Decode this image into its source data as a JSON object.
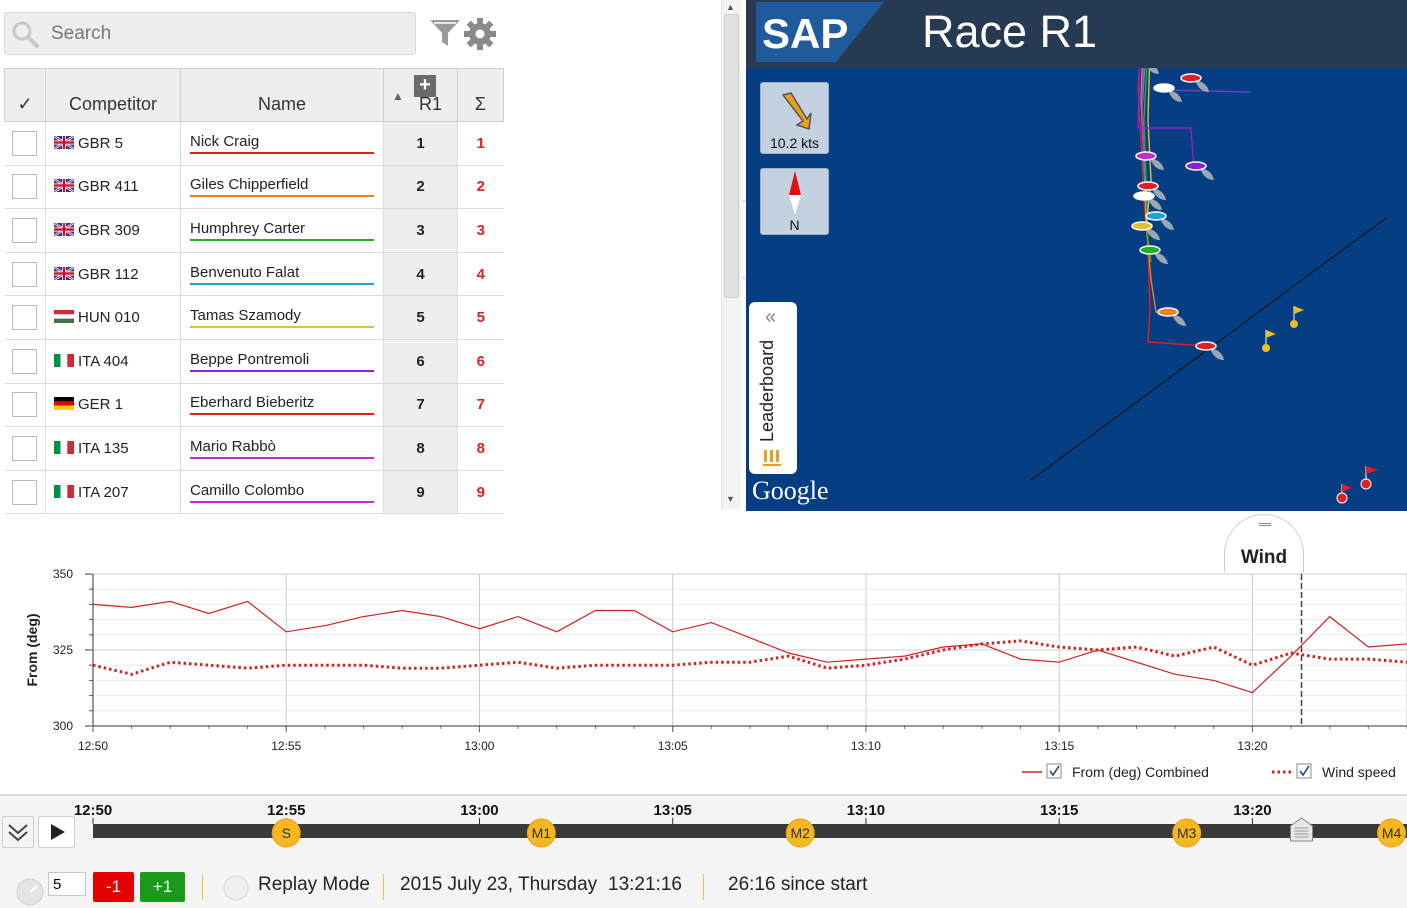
{
  "search": {
    "placeholder": "Search"
  },
  "leaderboard": {
    "columns": {
      "check": "✓",
      "competitor": "Competitor",
      "name": "Name",
      "race": "R1",
      "sum": "Σ"
    },
    "rows": [
      {
        "competitor": "GBR 5",
        "flag": "gb",
        "name": "Nick Craig",
        "r1": "1",
        "sum": "1",
        "color": "#e02020"
      },
      {
        "competitor": "GBR 411",
        "flag": "gb",
        "name": "Giles Chipperfield",
        "r1": "2",
        "sum": "2",
        "color": "#f08020"
      },
      {
        "competitor": "GBR 309",
        "flag": "gb",
        "name": "Humphrey Carter",
        "r1": "3",
        "sum": "3",
        "color": "#20b020"
      },
      {
        "competitor": "GBR 112",
        "flag": "gb",
        "name": "Benvenuto Falat",
        "r1": "4",
        "sum": "4",
        "color": "#20a0d0"
      },
      {
        "competitor": "HUN 010",
        "flag": "hu",
        "name": "Tamas Szamody",
        "r1": "5",
        "sum": "5",
        "color": "#e0c030"
      },
      {
        "competitor": "ITA 404",
        "flag": "it",
        "name": "Beppe Pontremoli",
        "r1": "6",
        "sum": "6",
        "color": "#9020d0"
      },
      {
        "competitor": "GER 1",
        "flag": "de",
        "name": "Eberhard Bieberitz",
        "r1": "7",
        "sum": "7",
        "color": "#e02020"
      },
      {
        "competitor": "ITA 135",
        "flag": "it",
        "name": "Mario Rabbò",
        "r1": "8",
        "sum": "8",
        "color": "#c030d0"
      },
      {
        "competitor": "ITA 207",
        "flag": "it",
        "name": "Camillo Colombo",
        "r1": "9",
        "sum": "9",
        "color": "#c030d0"
      }
    ]
  },
  "map": {
    "logo": "SAP",
    "title": "Race R1",
    "wind_label": "10.2 kts",
    "north_label": "N",
    "leaderboard_tab": "Leaderboard",
    "google": "Google",
    "water_color": "#063e84"
  },
  "wind_panel": {
    "tab_label": "Wind"
  },
  "chart_data": {
    "type": "line",
    "ylabel": "From (deg)",
    "xlabel": "",
    "ylim": [
      300,
      350
    ],
    "yticks": [
      "300",
      "325",
      "350"
    ],
    "x_ticks": [
      "12:50",
      "12:55",
      "13:00",
      "13:05",
      "13:10",
      "13:15",
      "13:20"
    ],
    "x_range_minutes": [
      "12:50",
      "13:24"
    ],
    "current_time_marker": "13:21",
    "grid": true,
    "legend_position": "bottom-right",
    "series": [
      {
        "name": "From (deg) Combined",
        "style": "solid",
        "color": "#d42020",
        "x": [
          "12:50",
          "12:51",
          "12:52",
          "12:53",
          "12:54",
          "12:55",
          "12:56",
          "12:57",
          "12:58",
          "12:59",
          "13:00",
          "13:01",
          "13:02",
          "13:03",
          "13:04",
          "13:05",
          "13:06",
          "13:07",
          "13:08",
          "13:09",
          "13:10",
          "13:11",
          "13:12",
          "13:13",
          "13:14",
          "13:15",
          "13:16",
          "13:17",
          "13:18",
          "13:19",
          "13:20",
          "13:21",
          "13:22",
          "13:23",
          "13:24"
        ],
        "values": [
          340,
          339,
          341,
          337,
          341,
          331,
          333,
          336,
          338,
          336,
          332,
          336,
          331,
          338,
          338,
          331,
          334,
          329,
          324,
          321,
          322,
          323,
          326,
          327,
          322,
          321,
          325,
          321,
          317,
          315,
          311,
          323,
          336,
          326,
          327
        ]
      },
      {
        "name": "Wind speed",
        "style": "dotted",
        "color": "#d42020",
        "x": [
          "12:50",
          "12:51",
          "12:52",
          "12:53",
          "12:54",
          "12:55",
          "12:56",
          "12:57",
          "12:58",
          "12:59",
          "13:00",
          "13:01",
          "13:02",
          "13:03",
          "13:04",
          "13:05",
          "13:06",
          "13:07",
          "13:08",
          "13:09",
          "13:10",
          "13:11",
          "13:12",
          "13:13",
          "13:14",
          "13:15",
          "13:16",
          "13:17",
          "13:18",
          "13:19",
          "13:20",
          "13:21",
          "13:22",
          "13:23",
          "13:24"
        ],
        "values": [
          320,
          317,
          321,
          320,
          319,
          320,
          320,
          320,
          319,
          319,
          320,
          321,
          319,
          320,
          320,
          320,
          321,
          321,
          323,
          319,
          320,
          322,
          325,
          327,
          328,
          326,
          325,
          326,
          323,
          326,
          320,
          324,
          322,
          322,
          321
        ]
      }
    ]
  },
  "timeline": {
    "ticks": [
      "12:50",
      "12:55",
      "13:00",
      "13:05",
      "13:10",
      "13:15",
      "13:20"
    ],
    "marks": [
      {
        "label": "S",
        "time": "12:55"
      },
      {
        "label": "M1",
        "time": "13:01.6"
      },
      {
        "label": "M2",
        "time": "13:08.3"
      },
      {
        "label": "M3",
        "time": "13:18.3"
      },
      {
        "label": "M4",
        "time": "13:23.6"
      }
    ],
    "current_time": "13:21:16",
    "speed": "5",
    "minus_label": "-1",
    "plus_label": "+1",
    "mode": "Replay Mode",
    "date": "2015 July 23, Thursday",
    "time": "13:21:16",
    "since_start": "26:16 since start"
  }
}
